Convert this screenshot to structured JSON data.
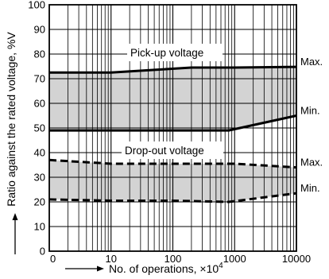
{
  "chart_data": {
    "type": "line",
    "x_scale": "log",
    "xlim": [
      1,
      10000
    ],
    "ylim": [
      0,
      100
    ],
    "grid": true,
    "xlabel": "No. of operations, ×10",
    "xlabel_sup": "4",
    "ylabel": "Ratio against the rated voltage, %V",
    "x_tick_labels": [
      "0",
      "10",
      "100",
      "1000",
      "10000"
    ],
    "y_tick_labels": [
      "0",
      "10",
      "20",
      "30",
      "40",
      "50",
      "60",
      "70",
      "80",
      "90",
      "100"
    ],
    "bands": [
      {
        "name": "Pick-up voltage",
        "fill": "#d3d3d3"
      },
      {
        "name": "Drop-out voltage",
        "fill": "#d3d3d3"
      }
    ],
    "series": [
      {
        "label": "Max.",
        "band": "Pick-up voltage",
        "style": "solid",
        "x": [
          1,
          10,
          200,
          1000,
          10000
        ],
        "y": [
          72.5,
          72.5,
          74.5,
          74.5,
          74.8
        ]
      },
      {
        "label": "Min.",
        "band": "Pick-up voltage",
        "style": "solid",
        "x": [
          1,
          10,
          100,
          800,
          10000
        ],
        "y": [
          49,
          49,
          49,
          49,
          55
        ]
      },
      {
        "label": "Max.",
        "band": "Drop-out voltage",
        "style": "dashed",
        "x": [
          1,
          10,
          100,
          1000,
          10000
        ],
        "y": [
          37,
          35.5,
          35.5,
          35.5,
          34
        ]
      },
      {
        "label": "Min.",
        "band": "Drop-out voltage",
        "style": "dashed",
        "x": [
          1,
          10,
          100,
          800,
          10000
        ],
        "y": [
          21,
          20.5,
          20.5,
          20,
          23.5
        ]
      }
    ]
  }
}
